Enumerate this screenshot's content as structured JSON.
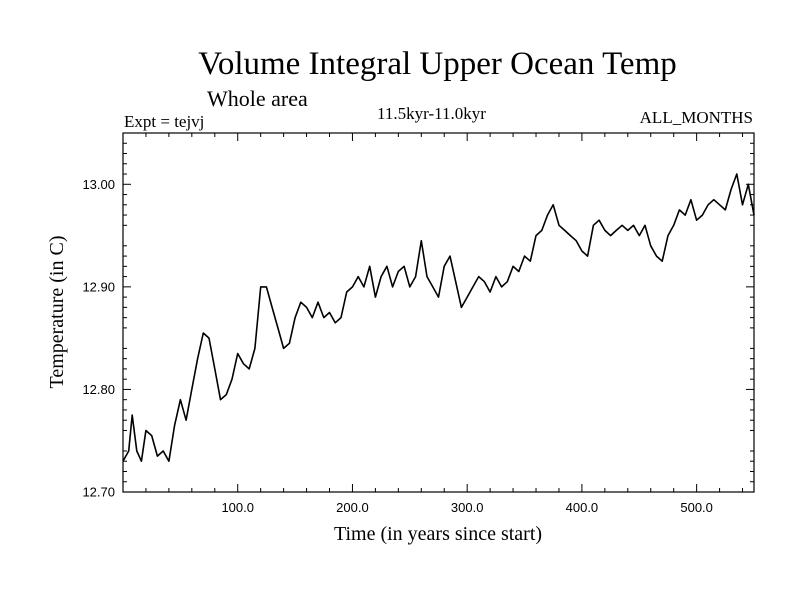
{
  "chart_data": {
    "type": "line",
    "title": "Volume Integral Upper Ocean Temp",
    "subtitle": "Whole area",
    "experiment": "Expt = tejvj",
    "period": "11.5kyr-11.0kyr",
    "months": "ALL_MONTHS",
    "xlabel": "Time (in years since start)",
    "ylabel": "Temperature (in C)",
    "xlim": [
      0,
      550
    ],
    "ylim": [
      12.7,
      13.05
    ],
    "xticks": [
      100,
      200,
      300,
      400,
      500
    ],
    "xtick_labels": [
      "100.0",
      "200.0",
      "300.0",
      "400.0",
      "500.0"
    ],
    "yticks": [
      12.7,
      12.8,
      12.9,
      13.0
    ],
    "ytick_labels": [
      "12.70",
      "12.80",
      "12.90",
      "13.00"
    ],
    "grid": false,
    "line_color": "#000000",
    "series": [
      {
        "name": "Temperature",
        "x": [
          0,
          5,
          8,
          12,
          16,
          20,
          25,
          30,
          35,
          40,
          45,
          50,
          55,
          60,
          65,
          70,
          75,
          80,
          85,
          90,
          95,
          100,
          105,
          110,
          115,
          120,
          125,
          130,
          135,
          140,
          145,
          150,
          155,
          160,
          165,
          170,
          175,
          180,
          185,
          190,
          195,
          200,
          205,
          210,
          215,
          220,
          225,
          230,
          235,
          240,
          245,
          250,
          255,
          260,
          265,
          270,
          275,
          280,
          285,
          290,
          295,
          300,
          305,
          310,
          315,
          320,
          325,
          330,
          335,
          340,
          345,
          350,
          355,
          360,
          365,
          370,
          375,
          380,
          385,
          390,
          395,
          400,
          405,
          410,
          415,
          420,
          425,
          430,
          435,
          440,
          445,
          450,
          455,
          460,
          465,
          470,
          475,
          480,
          485,
          490,
          495,
          500,
          505,
          510,
          515,
          520,
          525,
          530,
          535,
          540,
          545,
          550
        ],
        "y": [
          12.73,
          12.74,
          12.775,
          12.74,
          12.73,
          12.76,
          12.755,
          12.735,
          12.74,
          12.73,
          12.765,
          12.79,
          12.77,
          12.8,
          12.83,
          12.855,
          12.85,
          12.82,
          12.79,
          12.795,
          12.81,
          12.835,
          12.825,
          12.82,
          12.84,
          12.9,
          12.9,
          12.88,
          12.86,
          12.84,
          12.845,
          12.87,
          12.885,
          12.88,
          12.87,
          12.885,
          12.87,
          12.875,
          12.865,
          12.87,
          12.895,
          12.9,
          12.91,
          12.9,
          12.92,
          12.89,
          12.91,
          12.92,
          12.9,
          12.915,
          12.92,
          12.9,
          12.91,
          12.945,
          12.91,
          12.9,
          12.89,
          12.92,
          12.93,
          12.905,
          12.88,
          12.89,
          12.9,
          12.91,
          12.905,
          12.895,
          12.91,
          12.9,
          12.905,
          12.92,
          12.915,
          12.93,
          12.925,
          12.95,
          12.955,
          12.97,
          12.98,
          12.96,
          12.955,
          12.95,
          12.945,
          12.935,
          12.93,
          12.96,
          12.965,
          12.955,
          12.95,
          12.955,
          12.96,
          12.955,
          12.96,
          12.95,
          12.96,
          12.94,
          12.93,
          12.925,
          12.95,
          12.96,
          12.975,
          12.97,
          12.985,
          12.965,
          12.97,
          12.98,
          12.985,
          12.98,
          12.975,
          12.995,
          13.01,
          12.98,
          13.0,
          12.97
        ]
      }
    ]
  }
}
